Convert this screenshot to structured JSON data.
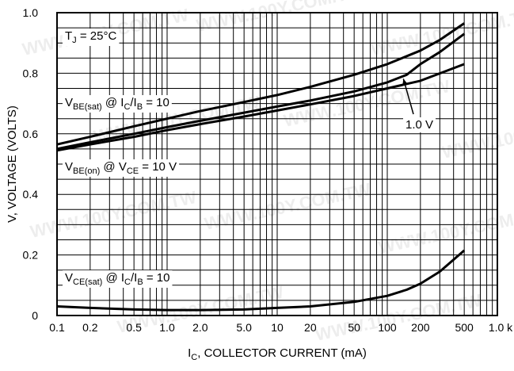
{
  "chart_data": {
    "type": "line",
    "xscale": "log",
    "xlim": [
      0.1,
      1000
    ],
    "ylim": [
      0,
      1.0
    ],
    "grid": true,
    "xlabel": {
      "main": "I",
      "sub": "C",
      "rest": ", COLLECTOR CURRENT (mA)"
    },
    "ylabel": "V, VOLTAGE (VOLTS)",
    "x_ticks": [
      {
        "value": 0.1,
        "label": "0.1"
      },
      {
        "value": 0.2,
        "label": "0.2"
      },
      {
        "value": 0.5,
        "label": "0.5"
      },
      {
        "value": 1,
        "label": "1.0"
      },
      {
        "value": 2,
        "label": "2.0"
      },
      {
        "value": 5,
        "label": "5.0"
      },
      {
        "value": 10,
        "label": "10"
      },
      {
        "value": 20,
        "label": "20"
      },
      {
        "value": 50,
        "label": "50"
      },
      {
        "value": 100,
        "label": "100"
      },
      {
        "value": 200,
        "label": "200"
      },
      {
        "value": 500,
        "label": "500"
      },
      {
        "value": 1000,
        "label": "1.0 k"
      }
    ],
    "y_ticks": [
      {
        "value": 0,
        "label": "0"
      },
      {
        "value": 0.2,
        "label": "0.2"
      },
      {
        "value": 0.4,
        "label": "0.4"
      },
      {
        "value": 0.6,
        "label": "0.6"
      },
      {
        "value": 0.8,
        "label": "0.8"
      },
      {
        "value": 1.0,
        "label": "1.0"
      }
    ],
    "annotations": {
      "temperature": {
        "parts": [
          "T",
          "J",
          " = 25°C"
        ]
      },
      "vbe_sat": {
        "parts": [
          "V",
          "BE(sat)",
          " @ I",
          "C",
          "/I",
          "B",
          " = 10"
        ]
      },
      "vbe_on": {
        "parts": [
          "V",
          "BE(on)",
          " @ V",
          "CE",
          " = 10 V"
        ]
      },
      "vce_sat": {
        "parts": [
          "V",
          "CE(sat)",
          " @ I",
          "C",
          "/I",
          "B",
          " = 10"
        ]
      },
      "vce_1v": {
        "label": "1.0 V"
      }
    },
    "series": [
      {
        "id": "vbe-sat",
        "x": [
          0.1,
          0.2,
          0.5,
          1,
          2,
          5,
          10,
          20,
          50,
          100,
          200,
          300,
          500
        ],
        "y": [
          0.565,
          0.59,
          0.625,
          0.65,
          0.675,
          0.705,
          0.728,
          0.755,
          0.795,
          0.83,
          0.875,
          0.91,
          0.965
        ]
      },
      {
        "id": "vbe-on-10v",
        "x": [
          0.1,
          0.2,
          0.5,
          1,
          2,
          5,
          10,
          20,
          50,
          100,
          200,
          500
        ],
        "y": [
          0.545,
          0.565,
          0.59,
          0.612,
          0.632,
          0.657,
          0.677,
          0.697,
          0.725,
          0.75,
          0.775,
          0.83
        ]
      },
      {
        "id": "vbe-on-1v",
        "x": [
          0.1,
          0.2,
          0.5,
          1,
          2,
          5,
          10,
          20,
          50,
          100,
          150,
          200,
          300,
          500
        ],
        "y": [
          0.55,
          0.572,
          0.6,
          0.622,
          0.643,
          0.67,
          0.69,
          0.71,
          0.74,
          0.77,
          0.795,
          0.83,
          0.87,
          0.93
        ]
      },
      {
        "id": "vce-sat",
        "x": [
          0.1,
          0.2,
          0.5,
          1,
          2,
          5,
          10,
          20,
          50,
          100,
          150,
          200,
          300,
          500
        ],
        "y": [
          0.03,
          0.025,
          0.02,
          0.018,
          0.018,
          0.02,
          0.025,
          0.03,
          0.045,
          0.065,
          0.085,
          0.105,
          0.145,
          0.215
        ]
      }
    ]
  },
  "watermark": {
    "text": "WWW.100Y.COM.TW"
  }
}
